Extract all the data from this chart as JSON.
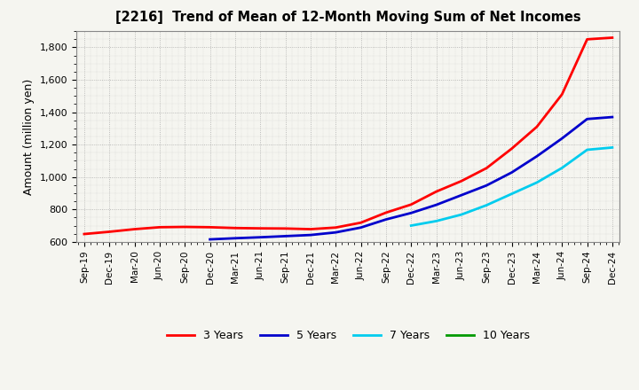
{
  "title": "[2216]  Trend of Mean of 12-Month Moving Sum of Net Incomes",
  "ylabel": "Amount (million yen)",
  "background_color": "#f5f5f0",
  "plot_bg_color": "#f5f5f0",
  "grid_color": "#999999",
  "ylim": [
    600,
    1900
  ],
  "yticks": [
    600,
    800,
    1000,
    1200,
    1400,
    1600,
    1800
  ],
  "x_labels": [
    "Sep-19",
    "Dec-19",
    "Mar-20",
    "Jun-20",
    "Sep-20",
    "Dec-20",
    "Mar-21",
    "Jun-21",
    "Sep-21",
    "Dec-21",
    "Mar-22",
    "Jun-22",
    "Sep-22",
    "Dec-22",
    "Mar-23",
    "Jun-23",
    "Sep-23",
    "Dec-23",
    "Mar-24",
    "Jun-24",
    "Sep-24",
    "Dec-24"
  ],
  "series": [
    {
      "label": "3 Years",
      "color": "#ff0000",
      "linewidth": 2.0,
      "data_x": [
        0,
        1,
        2,
        3,
        4,
        5,
        6,
        7,
        8,
        9,
        10,
        11,
        12,
        13,
        14,
        15,
        16,
        17,
        18,
        19,
        20,
        21
      ],
      "data_y": [
        648,
        662,
        678,
        690,
        692,
        690,
        685,
        683,
        682,
        678,
        688,
        718,
        780,
        830,
        910,
        975,
        1055,
        1175,
        1310,
        1510,
        1850,
        1860
      ]
    },
    {
      "label": "5 Years",
      "color": "#0000cc",
      "linewidth": 2.0,
      "data_x": [
        5,
        6,
        7,
        8,
        9,
        10,
        11,
        12,
        13,
        14,
        15,
        16,
        17,
        18,
        19,
        20,
        21
      ],
      "data_y": [
        615,
        622,
        628,
        635,
        642,
        658,
        688,
        738,
        778,
        828,
        888,
        948,
        1028,
        1128,
        1238,
        1358,
        1370
      ]
    },
    {
      "label": "7 Years",
      "color": "#00ccee",
      "linewidth": 2.0,
      "data_x": [
        13,
        14,
        15,
        16,
        17,
        18,
        19,
        20,
        21
      ],
      "data_y": [
        700,
        728,
        768,
        826,
        896,
        966,
        1056,
        1168,
        1182
      ]
    },
    {
      "label": "10 Years",
      "color": "#009900",
      "linewidth": 2.0,
      "data_x": [],
      "data_y": []
    }
  ],
  "legend_items": [
    {
      "label": "3 Years",
      "color": "#ff0000"
    },
    {
      "label": "5 Years",
      "color": "#0000cc"
    },
    {
      "label": "7 Years",
      "color": "#00ccee"
    },
    {
      "label": "10 Years",
      "color": "#009900"
    }
  ]
}
